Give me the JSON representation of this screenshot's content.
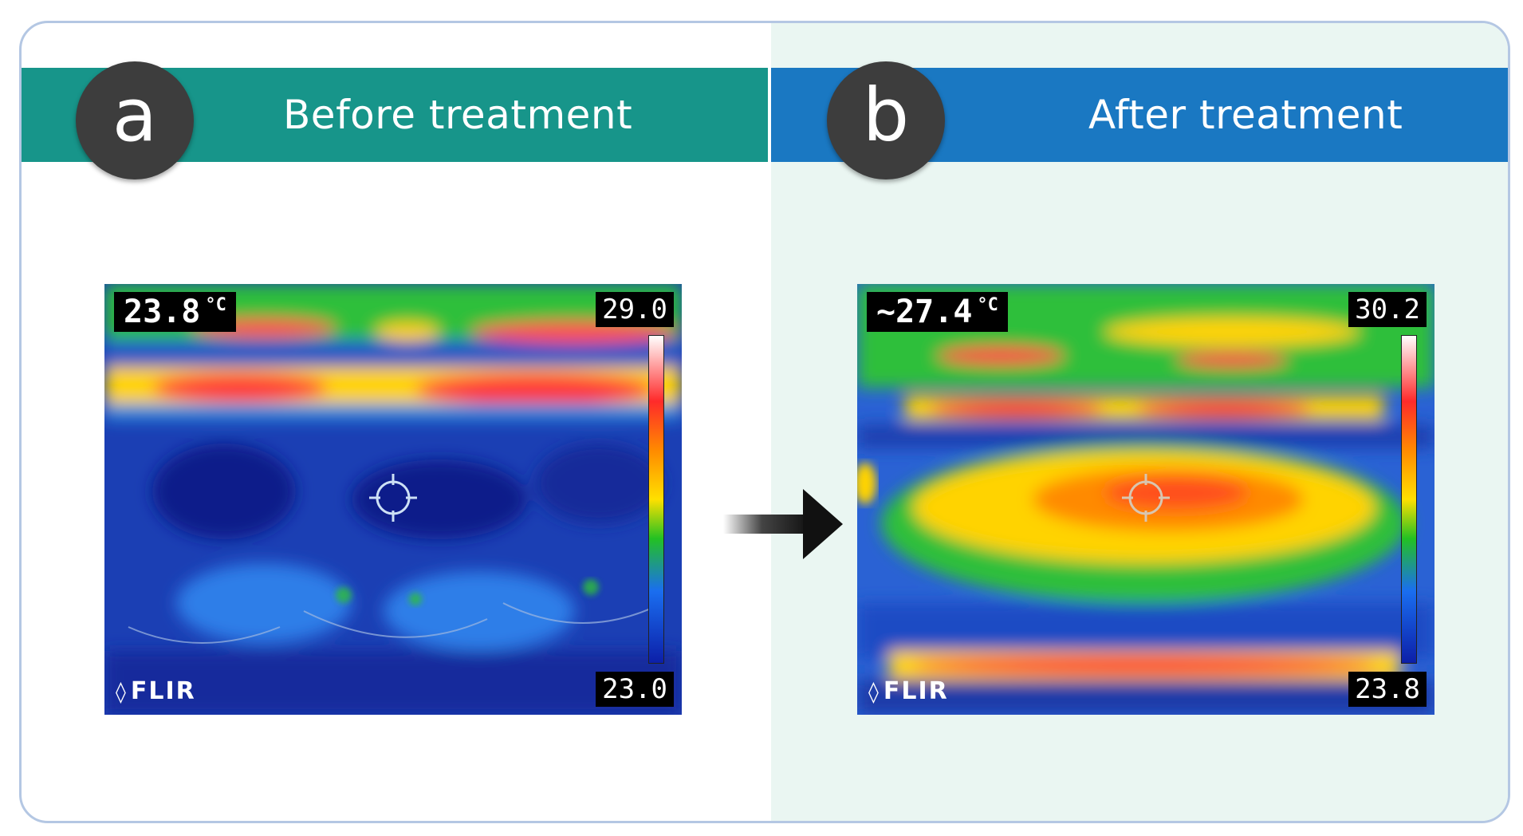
{
  "panel_a": {
    "badge": "a",
    "title": "Before treatment",
    "banner_color": "#17958a",
    "readout_value": "23.8",
    "readout_unit": "°C",
    "scale_max": "29.0",
    "scale_min": "23.0",
    "logo": "FLIR"
  },
  "panel_b": {
    "badge": "b",
    "title": "After treatment",
    "banner_color": "#1a78c2",
    "readout_value": "~27.4",
    "readout_unit": "°C",
    "scale_max": "30.2",
    "scale_min": "23.8",
    "logo": "FLIR"
  },
  "arrow": {
    "icon": "right-arrow-icon"
  }
}
